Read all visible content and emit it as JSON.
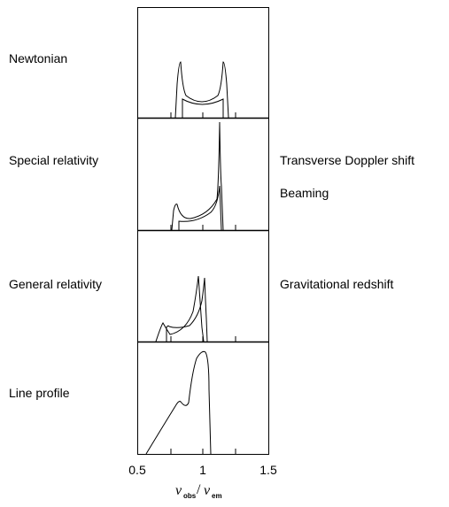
{
  "panels": [
    {
      "left_label": "Newtonian",
      "right_labels": []
    },
    {
      "left_label": "Special relativity",
      "right_labels": [
        "Transverse Doppler shift",
        "Beaming"
      ]
    },
    {
      "left_label": "General relativity",
      "right_labels": [
        "Gravitational redshift"
      ]
    },
    {
      "left_label": "Line profile",
      "right_labels": []
    }
  ],
  "x_axis": {
    "tick_labels": [
      "0.5",
      "1",
      "1.5"
    ],
    "tick_values": [
      0.5,
      1,
      1.5
    ],
    "label_main_1": "ν",
    "label_sub_1": "obs",
    "label_sep": "/",
    "label_main_2": "ν",
    "label_sub_2": "em",
    "range": [
      0.5,
      1.5
    ]
  },
  "colors": {
    "line": "#000000",
    "background": "#ffffff"
  }
}
